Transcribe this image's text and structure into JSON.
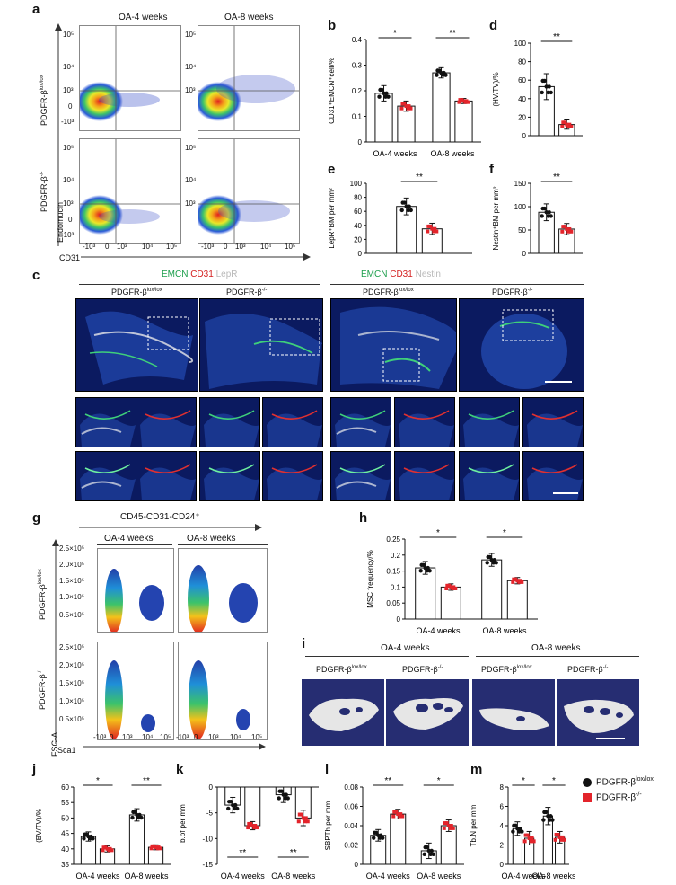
{
  "panel_letters": {
    "a": "a",
    "b": "b",
    "c": "c",
    "d": "d",
    "e": "e",
    "f": "f",
    "g": "g",
    "h": "h",
    "i": "i",
    "j": "j",
    "k": "k",
    "l": "l",
    "m": "m"
  },
  "genotypes": {
    "flox": "PDGFR-β",
    "flox_sup": "lox/lox",
    "ko": "PDGFR-β",
    "ko_sup": "-/-"
  },
  "panel_a": {
    "col_titles": [
      "OA-4 weeks",
      "OA-8 weeks"
    ],
    "y_axis": "Endomucin",
    "x_axis": "CD31",
    "y_ticks": [
      "10⁵",
      "10⁴",
      "10³",
      "0",
      "-10³"
    ],
    "x_ticks": [
      "-10³",
      "0",
      "10³",
      "10⁴",
      "10⁵"
    ]
  },
  "panel_c": {
    "left_title": {
      "a": "EMCN",
      "b": "CD31",
      "c": "LepR"
    },
    "right_title": {
      "a": "EMCN",
      "b": "CD31",
      "c": "Nestin"
    }
  },
  "panel_g": {
    "header": "CD45-CD31-CD24⁺",
    "col_titles": [
      "OA-4 weeks",
      "OA-8 weeks"
    ],
    "y_axis": "FSC-A",
    "x_axis": "Sca1",
    "y_ticks": [
      "2.5×10⁵",
      "2.0×10⁵",
      "1.5×10⁵",
      "1.0×10⁵",
      "0.5×10⁵"
    ],
    "x_ticks": [
      "-10³",
      "0",
      "10³",
      "10⁴",
      "10⁵"
    ]
  },
  "panel_i": {
    "col_titles": [
      "OA-4 weeks",
      "OA-8 weeks"
    ]
  },
  "legend": {
    "flox_label": "PDGFR-β",
    "flox_sup": "lox/lox",
    "ko_label": "PDGFR-β",
    "ko_sup": "-/-",
    "flox_color": "#111111",
    "ko_color": "#e3242b"
  },
  "chart_data": [
    {
      "id": "b",
      "type": "bar",
      "ylabel": "CD31⁺EMCN⁺cell/%",
      "ylim": [
        0,
        0.4
      ],
      "yticks": [
        0,
        0.1,
        0.2,
        0.3,
        0.4
      ],
      "groups": [
        "OA-4 weeks",
        "OA-8 weeks"
      ],
      "series": [
        {
          "values": [
            0.19,
            0.27
          ]
        },
        {
          "values": [
            0.14,
            0.16
          ]
        }
      ],
      "sd": [
        [
          0.03,
          0.02
        ],
        [
          0.02,
          0.01
        ]
      ],
      "sig": [
        "*",
        "**"
      ]
    },
    {
      "id": "d",
      "type": "bar",
      "ylabel": "(HV/TV)/%",
      "ylim": [
        0,
        100
      ],
      "yticks": [
        0,
        20,
        40,
        60,
        80,
        100
      ],
      "groups": [],
      "series": [
        {
          "values": [
            53
          ]
        },
        {
          "values": [
            12
          ]
        }
      ],
      "sd": [
        [
          14
        ],
        [
          5
        ]
      ],
      "sig": [
        "**"
      ]
    },
    {
      "id": "e",
      "type": "bar",
      "ylabel": "LepR⁺BM per mm²",
      "ylim": [
        0,
        100
      ],
      "yticks": [
        0,
        20,
        40,
        60,
        80,
        100
      ],
      "groups": [],
      "series": [
        {
          "values": [
            67
          ]
        },
        {
          "values": [
            35
          ]
        }
      ],
      "sd": [
        [
          12
        ],
        [
          8
        ]
      ],
      "sig": [
        "**"
      ]
    },
    {
      "id": "f",
      "type": "bar",
      "ylabel": "Nestin⁺BM per mm²",
      "ylim": [
        0,
        150
      ],
      "yticks": [
        0,
        50,
        100,
        150
      ],
      "groups": [],
      "series": [
        {
          "values": [
            88
          ]
        },
        {
          "values": [
            52
          ]
        }
      ],
      "sd": [
        [
          18
        ],
        [
          12
        ]
      ],
      "sig": [
        "**"
      ]
    },
    {
      "id": "h",
      "type": "bar",
      "ylabel": "MSC frequency/%",
      "ylim": [
        0,
        0.25
      ],
      "yticks": [
        0,
        0.05,
        0.1,
        0.15,
        0.2,
        0.25
      ],
      "groups": [
        "OA-4 weeks",
        "OA-8 weeks"
      ],
      "series": [
        {
          "values": [
            0.16,
            0.185
          ]
        },
        {
          "values": [
            0.1,
            0.12
          ]
        }
      ],
      "sd": [
        [
          0.02,
          0.02
        ],
        [
          0.01,
          0.01
        ]
      ],
      "sig": [
        "*",
        "*"
      ]
    },
    {
      "id": "j",
      "type": "bar",
      "ylabel": "(BV/TV)/%",
      "ylim": [
        35,
        60
      ],
      "yticks": [
        35,
        40,
        45,
        50,
        55,
        60
      ],
      "groups": [
        "OA-4 weeks",
        "OA-8 weeks"
      ],
      "series": [
        {
          "values": [
            44,
            51
          ]
        },
        {
          "values": [
            40,
            40.5
          ]
        }
      ],
      "sd": [
        [
          1.5,
          2
        ],
        [
          1,
          0.8
        ]
      ],
      "sig": [
        "*",
        "**"
      ]
    },
    {
      "id": "k",
      "type": "bar",
      "ylabel": "Tb.pf per mm",
      "ylim": [
        -15,
        0
      ],
      "yticks": [
        0,
        -5,
        -10,
        -15
      ],
      "groups": [
        "OA-4 weeks",
        "OA-8 weeks"
      ],
      "series": [
        {
          "values": [
            -3.5,
            -1.5
          ]
        },
        {
          "values": [
            -7.5,
            -6
          ]
        }
      ],
      "sd": [
        [
          1.5,
          1.5
        ],
        [
          0.8,
          1.5
        ]
      ],
      "sig": [
        "**",
        "**"
      ]
    },
    {
      "id": "l",
      "type": "bar",
      "ylabel": "SBPTh per mm",
      "ylim": [
        0,
        0.08
      ],
      "yticks": [
        0,
        0.02,
        0.04,
        0.06,
        0.08
      ],
      "groups": [
        "OA-4 weeks",
        "OA-8 weeks"
      ],
      "series": [
        {
          "values": [
            0.03,
            0.014
          ]
        },
        {
          "values": [
            0.052,
            0.04
          ]
        }
      ],
      "sd": [
        [
          0.006,
          0.008
        ],
        [
          0.005,
          0.006
        ]
      ],
      "sig": [
        "**",
        "*"
      ]
    },
    {
      "id": "m",
      "type": "bar",
      "ylabel": "Tb.N per mm",
      "ylim": [
        0,
        8
      ],
      "yticks": [
        0,
        2,
        4,
        6,
        8
      ],
      "groups": [
        "OA-4 weeks",
        "OA-8 weeks"
      ],
      "series": [
        {
          "values": [
            3.7,
            5
          ]
        },
        {
          "values": [
            2.7,
            2.8
          ]
        }
      ],
      "sd": [
        [
          0.7,
          0.9
        ],
        [
          0.7,
          0.6
        ]
      ],
      "sig": [
        "*",
        "*"
      ]
    }
  ]
}
